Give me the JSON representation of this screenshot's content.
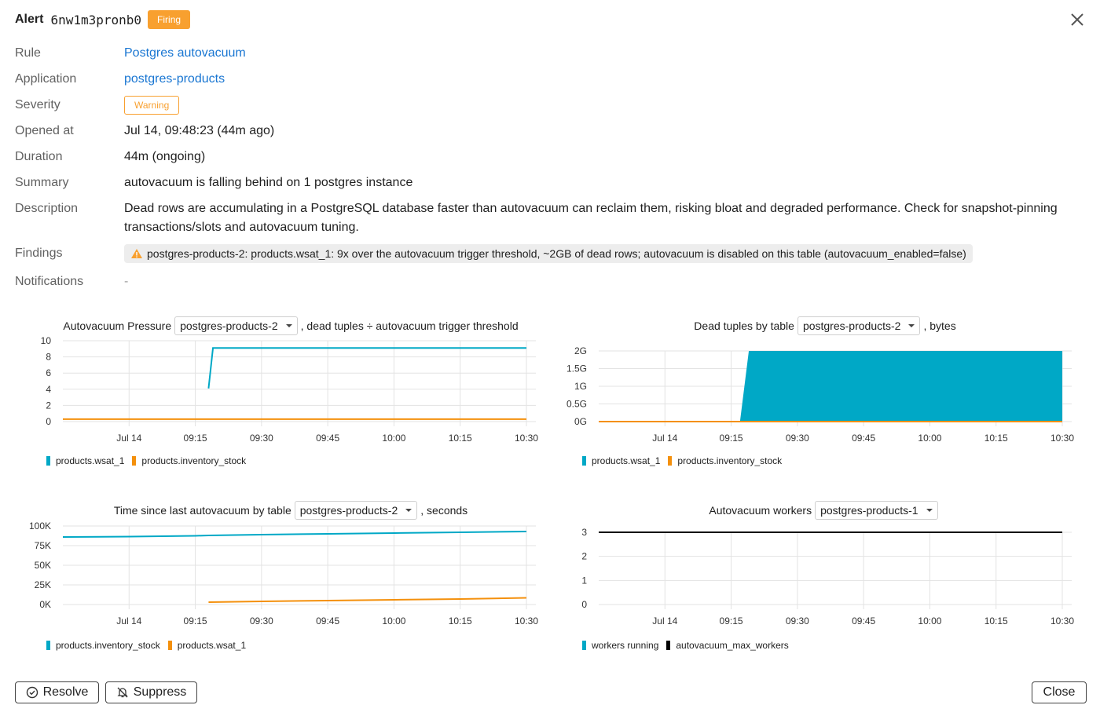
{
  "header": {
    "title": "Alert",
    "alert_id": "6nw1m3pronb0",
    "status": "Firing"
  },
  "details": {
    "rule": {
      "label": "Rule",
      "value": "Postgres autovacuum"
    },
    "application": {
      "label": "Application",
      "value": "postgres-products"
    },
    "severity": {
      "label": "Severity",
      "value": "Warning"
    },
    "opened_at": {
      "label": "Opened at",
      "value": "Jul 14, 09:48:23 (44m ago)"
    },
    "duration": {
      "label": "Duration",
      "value": "44m (ongoing)"
    },
    "summary": {
      "label": "Summary",
      "value": "autovacuum is falling behind on 1 postgres instance"
    },
    "description": {
      "label": "Description",
      "value": "Dead rows are accumulating in a PostgreSQL database faster than autovacuum can reclaim them, risking bloat and degraded performance. Check for snapshot-pinning transactions/slots and autovacuum tuning."
    },
    "findings": {
      "label": "Findings",
      "value": "postgres-products-2: products.wsat_1: 9x over the autovacuum trigger threshold, ~2GB of dead rows; autovacuum is disabled on this table (autovacuum_enabled=false)"
    },
    "notifications": {
      "label": "Notifications",
      "value": "-"
    }
  },
  "colors": {
    "accent": "#1976d2",
    "firing": "#f8a02f",
    "series_blue": "#00a8c6",
    "series_orange": "#f4900c",
    "black": "#000000"
  },
  "charts": {
    "pressure": {
      "title": "Autovacuum Pressure",
      "select": "postgres-products-2",
      "suffix": ", dead tuples ÷ autovacuum trigger threshold"
    },
    "dead_tuples": {
      "title": "Dead tuples by table",
      "select": "postgres-products-2",
      "suffix": ", bytes"
    },
    "last_vacuum": {
      "title": "Time since last autovacuum by table",
      "select": "postgres-products-2",
      "suffix": ", seconds"
    },
    "workers": {
      "title": "Autovacuum workers",
      "select": "postgres-products-1",
      "suffix": ""
    }
  },
  "chart_data": [
    {
      "type": "line",
      "x_ticks": [
        "Jul 14",
        "09:15",
        "09:30",
        "09:45",
        "10:00",
        "10:15",
        "10:30"
      ],
      "y_ticks": [
        "0",
        "2",
        "4",
        "6",
        "8",
        "10"
      ],
      "ylim": [
        0,
        10
      ],
      "x": [
        "08:45",
        "09:00",
        "09:15",
        "09:18",
        "09:19",
        "09:30",
        "09:45",
        "10:00",
        "10:15",
        "10:30"
      ],
      "series": [
        {
          "name": "products.wsat_1",
          "color": "#00a8c6",
          "values": [
            null,
            null,
            null,
            4.1,
            9.1,
            9.1,
            9.1,
            9.1,
            9.1,
            9.1
          ]
        },
        {
          "name": "products.inventory_stock",
          "color": "#f4900c",
          "values": [
            0.3,
            0.3,
            0.3,
            0.3,
            0.3,
            0.3,
            0.3,
            0.3,
            0.3,
            0.3
          ]
        }
      ]
    },
    {
      "type": "area",
      "x_ticks": [
        "Jul 14",
        "09:15",
        "09:30",
        "09:45",
        "10:00",
        "10:15",
        "10:30"
      ],
      "y_ticks": [
        "0G",
        "0.5G",
        "1G",
        "1.5G",
        "2G"
      ],
      "ylim": [
        0,
        2
      ],
      "x": [
        "08:45",
        "09:00",
        "09:15",
        "09:17",
        "09:19",
        "09:30",
        "09:45",
        "10:00",
        "10:15",
        "10:30"
      ],
      "series": [
        {
          "name": "products.wsat_1",
          "color": "#00a8c6",
          "values": [
            0,
            0,
            0,
            0,
            2,
            2,
            2,
            2,
            2,
            2
          ]
        },
        {
          "name": "products.inventory_stock",
          "color": "#f4900c",
          "values": [
            0,
            0,
            0,
            0,
            0,
            0,
            0,
            0,
            0,
            0
          ]
        }
      ]
    },
    {
      "type": "line",
      "x_ticks": [
        "Jul 14",
        "09:15",
        "09:30",
        "09:45",
        "10:00",
        "10:15",
        "10:30"
      ],
      "y_ticks": [
        "0K",
        "25K",
        "50K",
        "75K",
        "100K"
      ],
      "ylim": [
        0,
        100000
      ],
      "x": [
        "08:45",
        "09:00",
        "09:15",
        "09:18",
        "09:30",
        "09:45",
        "10:00",
        "10:15",
        "10:30"
      ],
      "series": [
        {
          "name": "products.inventory_stock",
          "color": "#00a8c6",
          "values": [
            86000,
            86500,
            87500,
            88000,
            89000,
            90000,
            91000,
            92000,
            93000
          ]
        },
        {
          "name": "products.wsat_1",
          "color": "#f4900c",
          "values": [
            null,
            null,
            null,
            3000,
            4000,
            5000,
            6000,
            7000,
            8500
          ]
        }
      ]
    },
    {
      "type": "line",
      "x_ticks": [
        "Jul 14",
        "09:15",
        "09:30",
        "09:45",
        "10:00",
        "10:15",
        "10:30"
      ],
      "y_ticks": [
        "0",
        "1",
        "2",
        "3"
      ],
      "ylim": [
        0,
        3
      ],
      "x": [
        "08:45",
        "10:30"
      ],
      "series": [
        {
          "name": "workers running",
          "color": "#00a8c6",
          "values": [
            null,
            null
          ]
        },
        {
          "name": "autovacuum_max_workers",
          "color": "#000000",
          "values": [
            3,
            3
          ]
        }
      ]
    }
  ],
  "footer": {
    "resolve": "Resolve",
    "suppress": "Suppress",
    "close": "Close"
  }
}
